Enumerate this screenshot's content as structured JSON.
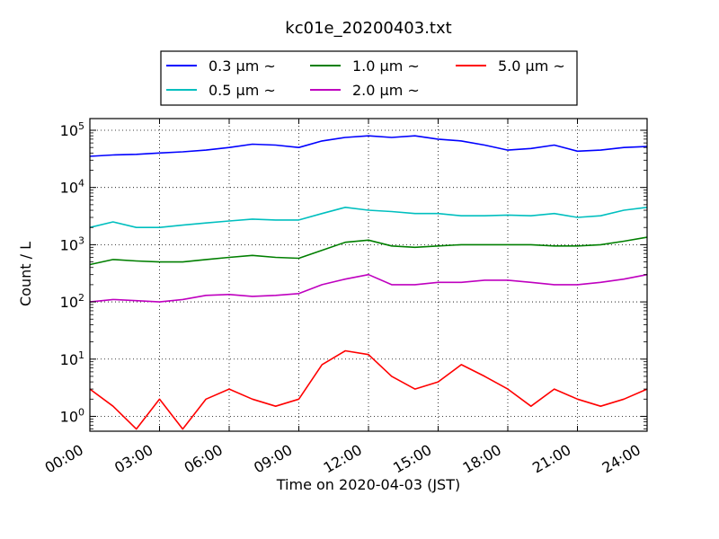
{
  "chart_data": {
    "type": "line",
    "title": "kc01e_20200403.txt",
    "xlabel": "Time on 2020-04-03 (JST)",
    "ylabel": "Count / L",
    "yscale": "log",
    "xlim": [
      "00:00",
      "24:00"
    ],
    "ylim": [
      0.55,
      160000
    ],
    "x_ticks": [
      "00:00",
      "03:00",
      "06:00",
      "09:00",
      "12:00",
      "15:00",
      "18:00",
      "21:00",
      "24:00"
    ],
    "y_ticks": [
      {
        "value": 1,
        "label_base": "10",
        "label_exp": "0"
      },
      {
        "value": 10,
        "label_base": "10",
        "label_exp": "1"
      },
      {
        "value": 100,
        "label_base": "10",
        "label_exp": "2"
      },
      {
        "value": 1000,
        "label_base": "10",
        "label_exp": "3"
      },
      {
        "value": 10000,
        "label_base": "10",
        "label_exp": "4"
      },
      {
        "value": 100000,
        "label_base": "10",
        "label_exp": "5"
      }
    ],
    "grid": true,
    "legend_placement": "top-center",
    "x_hours": [
      0,
      1,
      2,
      3,
      4,
      5,
      6,
      7,
      8,
      9,
      10,
      11,
      12,
      13,
      14,
      15,
      16,
      17,
      18,
      19,
      20,
      21,
      22,
      23,
      24
    ],
    "series": [
      {
        "name": "0.3 μm  ~",
        "color": "#0000ff",
        "values": [
          35000,
          37000,
          38000,
          40000,
          42000,
          45000,
          50000,
          57000,
          55000,
          50000,
          65000,
          75000,
          80000,
          75000,
          80000,
          70000,
          65000,
          55000,
          45000,
          48000,
          55000,
          43000,
          45000,
          50000,
          52000
        ]
      },
      {
        "name": "0.5 μm  ~",
        "color": "#00bfbf",
        "values": [
          2000,
          2500,
          2000,
          2000,
          2200,
          2400,
          2600,
          2800,
          2700,
          2700,
          3500,
          4500,
          4000,
          3800,
          3500,
          3500,
          3200,
          3200,
          3300,
          3200,
          3500,
          3000,
          3200,
          4000,
          4500
        ]
      },
      {
        "name": "1.0 μm  ~",
        "color": "#007f00",
        "values": [
          450,
          550,
          520,
          500,
          500,
          550,
          600,
          650,
          600,
          580,
          800,
          1100,
          1200,
          950,
          900,
          950,
          1000,
          1000,
          1000,
          1000,
          950,
          950,
          1000,
          1150,
          1350
        ]
      },
      {
        "name": "2.0 μm  ~",
        "color": "#bf00bf",
        "values": [
          100,
          110,
          105,
          100,
          110,
          130,
          135,
          125,
          130,
          140,
          200,
          250,
          300,
          200,
          200,
          220,
          220,
          240,
          240,
          220,
          200,
          200,
          220,
          250,
          300
        ]
      },
      {
        "name": "5.0 μm  ~",
        "color": "#ff0000",
        "values": [
          3,
          1.5,
          0.6,
          2,
          0.6,
          2,
          3,
          2,
          1.5,
          2,
          8,
          14,
          12,
          5,
          3,
          4,
          8,
          5,
          3,
          1.5,
          3,
          2,
          1.5,
          2,
          3
        ]
      }
    ]
  }
}
